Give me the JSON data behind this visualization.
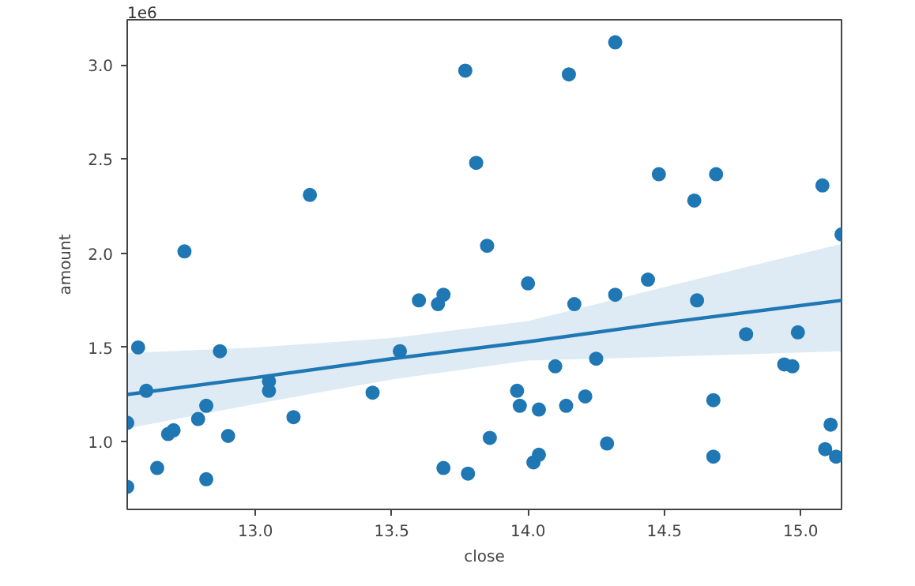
{
  "chart_data": {
    "type": "scatter",
    "xlabel": "close",
    "ylabel": "amount",
    "annotations": [
      "1e6"
    ],
    "xlim": [
      12.53,
      15.15
    ],
    "ylim": [
      0.64,
      3.24
    ],
    "xticks": [
      {
        "value": 13.0,
        "label": "13.0"
      },
      {
        "value": 13.5,
        "label": "13.5"
      },
      {
        "value": 14.0,
        "label": "14.0"
      },
      {
        "value": 14.5,
        "label": "14.5"
      },
      {
        "value": 15.0,
        "label": "15.0"
      }
    ],
    "yticks": [
      {
        "value": 1.0,
        "label": "1.0"
      },
      {
        "value": 1.5,
        "label": "1.5"
      },
      {
        "value": 2.0,
        "label": "2.0"
      },
      {
        "value": 2.5,
        "label": "2.5"
      },
      {
        "value": 3.0,
        "label": "3.0"
      }
    ],
    "grid": false,
    "marker": "circle",
    "series": [
      {
        "color": "#1f77b4",
        "x": [
          12.53,
          12.53,
          12.57,
          12.6,
          12.64,
          12.68,
          12.7,
          12.79,
          12.82,
          12.82,
          12.87,
          12.9,
          13.05,
          13.05,
          13.14,
          13.43,
          13.53,
          13.6,
          13.67,
          13.69,
          13.69,
          13.78,
          12.74,
          13.2,
          13.77,
          13.81,
          14.15,
          14.32,
          14.48,
          14.69,
          14.61,
          15.08,
          13.85,
          15.15,
          14.0,
          14.44,
          14.17,
          14.32,
          14.62,
          13.86,
          13.96,
          13.97,
          14.04,
          14.1,
          14.14,
          14.21,
          14.25,
          14.02,
          14.04,
          14.29,
          14.68,
          14.68,
          14.8,
          14.99,
          14.94,
          14.97,
          15.11,
          15.09,
          15.13
        ],
        "values": [
          0.76,
          1.1,
          1.5,
          1.27,
          0.86,
          1.04,
          1.06,
          1.12,
          1.19,
          0.8,
          1.48,
          1.03,
          1.32,
          1.27,
          1.13,
          1.26,
          1.48,
          1.75,
          1.73,
          1.78,
          0.86,
          0.83,
          2.01,
          2.31,
          2.97,
          2.48,
          2.95,
          3.12,
          2.42,
          2.42,
          2.28,
          2.36,
          2.04,
          2.1,
          1.84,
          1.86,
          1.73,
          1.78,
          1.75,
          1.02,
          1.27,
          1.19,
          1.17,
          1.4,
          1.19,
          1.24,
          1.44,
          0.89,
          0.93,
          0.99,
          1.22,
          0.92,
          1.57,
          1.58,
          1.41,
          1.4,
          1.09,
          0.96,
          0.92
        ]
      },
      {
        "type": "line",
        "marker": "none",
        "color": "#1f77b4",
        "x": [
          12.53,
          13.0,
          13.5,
          14.0,
          14.5,
          15.15
        ],
        "values": [
          1.25,
          1.34,
          1.44,
          1.53,
          1.63,
          1.75
        ],
        "lower": [
          1.07,
          1.2,
          1.33,
          1.43,
          1.45,
          1.48
        ],
        "upper": [
          1.47,
          1.5,
          1.55,
          1.64,
          1.82,
          2.05
        ]
      }
    ]
  }
}
